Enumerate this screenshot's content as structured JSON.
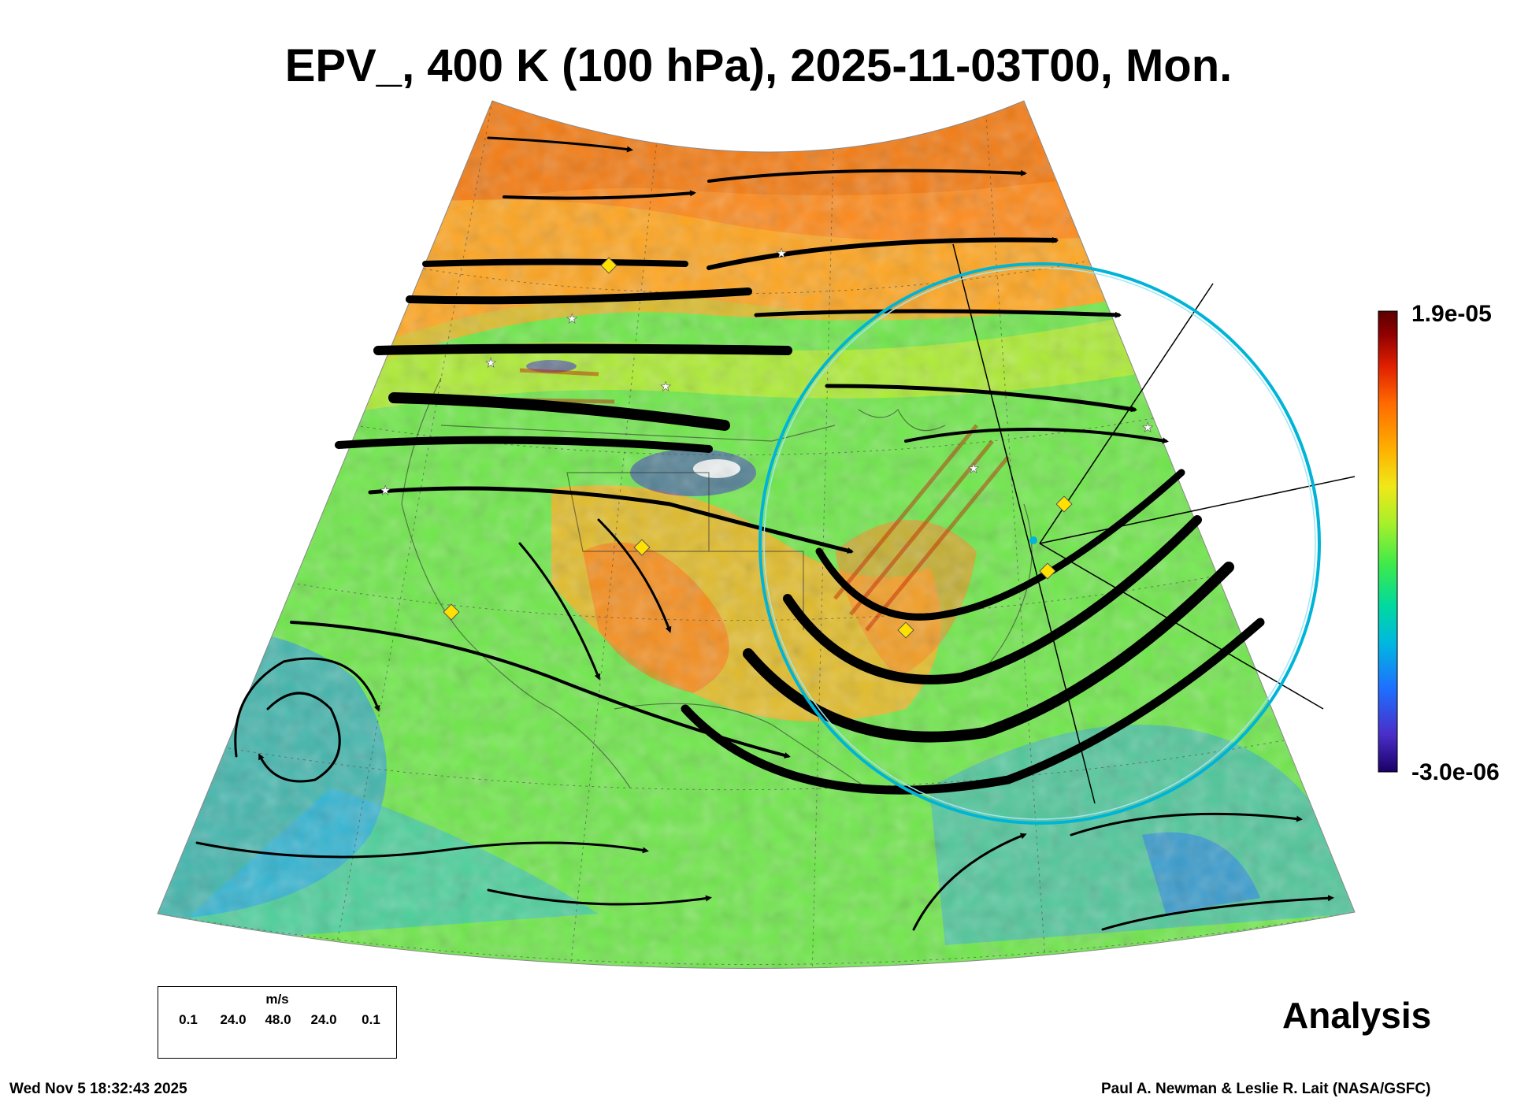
{
  "title": "EPV_, 400 K (100 hPa), 2025-11-03T00, Mon.",
  "colorbar": {
    "max_label": "1.9e-05",
    "min_label": "-3.0e-06",
    "colors": [
      "#1a0066",
      "#4a2dc8",
      "#1e6fff",
      "#00b8e0",
      "#00d9a0",
      "#3dea4a",
      "#a8f02a",
      "#f0e818",
      "#ffb000",
      "#ff6a00",
      "#e02000",
      "#900000",
      "#5a0000"
    ]
  },
  "label_analysis": "Analysis",
  "wind_legend": {
    "unit": "m/s",
    "ticks": [
      "0.1",
      "24.0",
      "48.0",
      "24.0",
      "0.1"
    ]
  },
  "footer": {
    "timestamp": "Wed Nov  5 18:32:43 2025",
    "credit": "Paul A. Newman & Leslie R. Lait (NASA/GSFC)"
  },
  "markers": {
    "diamond_color": "#ffe000",
    "star_color": "#ffffff",
    "ring_color": "#00b4d8"
  }
}
